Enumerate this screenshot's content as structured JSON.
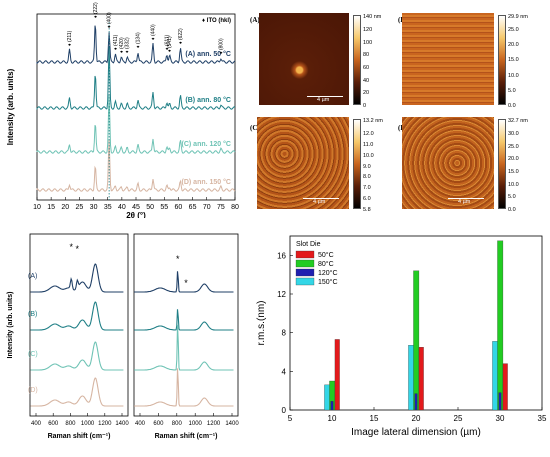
{
  "xrd": {
    "ylabel": "Intensity (arb. units)",
    "xlabel": "2θ (°)",
    "legend": "♦ ITO (hkl)",
    "xticks": [
      "10",
      "15",
      "20",
      "25",
      "30",
      "35",
      "40",
      "45",
      "50",
      "55",
      "60",
      "65",
      "70",
      "75",
      "80"
    ],
    "peaks": [
      "(211)",
      "(222)",
      "(400)",
      "(411)",
      "(420)",
      "(332)",
      "(134)",
      "(440)",
      "(611)",
      "(541)",
      "(622)",
      "(800)"
    ],
    "series": [
      {
        "name": "(A) ann. 50 °C",
        "color": "#1f3f66"
      },
      {
        "name": "(B) ann. 80 °C",
        "color": "#1f7f86"
      },
      {
        "name": "(C) ann. 120 °C",
        "color": "#6fc3b5"
      },
      {
        "name": "(D) ann. 150 °C",
        "color": "#d6b5a2"
      }
    ]
  },
  "afm": [
    {
      "label": "(A)",
      "max": "140 nm",
      "ticks": [
        "120",
        "100",
        "80",
        "60",
        "40",
        "20",
        "0"
      ],
      "scale": "4 µm"
    },
    {
      "label": "(B)",
      "max": "29.9 nm",
      "ticks": [
        "25.0",
        "20.0",
        "15.0",
        "10.0",
        "5.0",
        "0.0"
      ],
      "scale": "4 µm"
    },
    {
      "label": "(C)",
      "max": "13.2 nm",
      "ticks": [
        "12.0",
        "11.0",
        "10.0",
        "9.0",
        "8.0",
        "7.0",
        "6.0",
        "5.8"
      ],
      "scale": "4 µm"
    },
    {
      "label": "(D)",
      "max": "32.7 nm",
      "ticks": [
        "30.0",
        "25.0",
        "20.0",
        "15.0",
        "10.0",
        "5.0",
        "0.0"
      ],
      "scale": "4 µm"
    }
  ],
  "raman": {
    "ylabel": "Intensity (arb. units)",
    "xlabel": "Raman shift (cm⁻¹)",
    "xticks": [
      "400",
      "600",
      "800",
      "1000",
      "1200",
      "1400"
    ],
    "labels": [
      "(A)",
      "(B)",
      "(C)",
      "(D)"
    ],
    "colors": [
      "#1f3f66",
      "#1f7f86",
      "#6fc3b5",
      "#d6b5a2"
    ],
    "star": "*"
  },
  "chart_data": {
    "type": "bar",
    "xlabel": "Image lateral dimension (µm)",
    "ylabel": "r.m.s.(nm)",
    "legend_title": "Slot Die",
    "legend_position": "top-left",
    "xlim": [
      5,
      35
    ],
    "ylim": [
      0,
      18
    ],
    "xticks": [
      "5",
      "10",
      "15",
      "20",
      "25",
      "30",
      "35"
    ],
    "yticks": [
      "0",
      "4",
      "8",
      "12",
      "16"
    ],
    "categories": [
      10,
      20,
      30
    ],
    "series": [
      {
        "name": "50°C",
        "color": "#e31a1c",
        "values": [
          7.3,
          6.5,
          4.8
        ]
      },
      {
        "name": "80°C",
        "color": "#22cc22",
        "values": [
          3.0,
          14.4,
          17.5
        ]
      },
      {
        "name": "120°C",
        "color": "#1f1fb0",
        "values": [
          0.9,
          1.7,
          1.8
        ]
      },
      {
        "name": "150°C",
        "color": "#33d6e6",
        "values": [
          2.6,
          6.7,
          7.1
        ]
      }
    ]
  }
}
